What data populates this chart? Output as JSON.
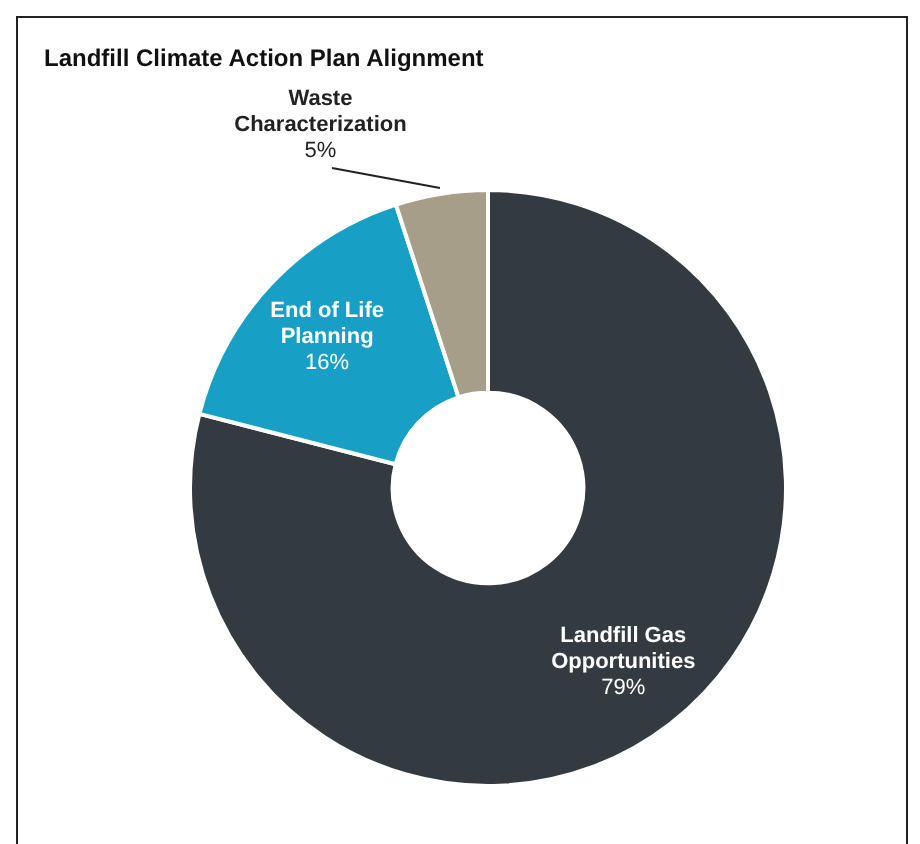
{
  "chart_data": {
    "type": "donut",
    "title": "Landfill Climate Action Plan Alignment",
    "categories": [
      "Landfill Gas Opportunities",
      "End of Life Planning",
      "Waste Characterization"
    ],
    "values": [
      79,
      16,
      5
    ],
    "colors": [
      "#333b41",
      "#179fc5",
      "#a79e8a"
    ],
    "value_labels": [
      "79%",
      "16%",
      "5%"
    ],
    "legend": false
  }
}
